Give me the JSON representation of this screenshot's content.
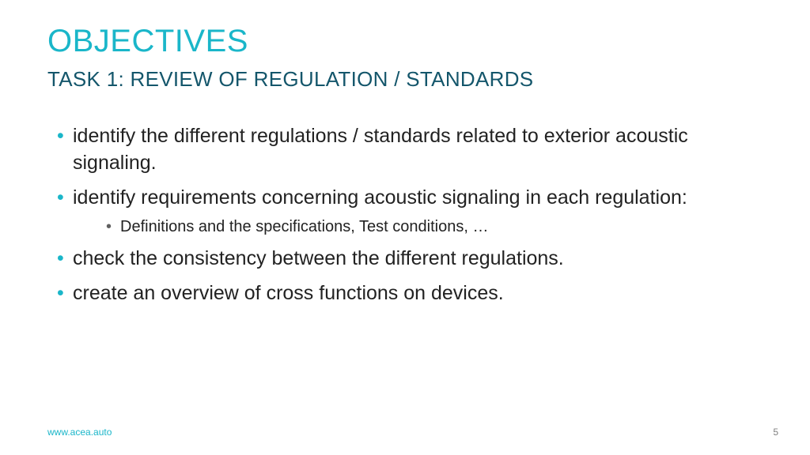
{
  "colors": {
    "accent": "#1ab6c9",
    "subtitle": "#14566b",
    "body_text": "#222222",
    "sub_bullet": "#606060",
    "page_number": "#808080",
    "background": "#ffffff"
  },
  "typography": {
    "title_fontsize": 40,
    "subtitle_fontsize": 26,
    "body_fontsize": 25,
    "sub_fontsize": 20,
    "footer_fontsize": 12,
    "font_family": "Arial"
  },
  "title": "OBJECTIVES",
  "subtitle": "TASK 1: REVIEW OF REGULATION / STANDARDS",
  "bullets": [
    {
      "text": "identify the different regulations / standards related to exterior acoustic signaling."
    },
    {
      "text": "identify requirements concerning acoustic signaling in each regulation:",
      "sub": [
        "Definitions and the specifications, Test conditions, …"
      ]
    },
    {
      "text": "check the consistency between the different regulations."
    },
    {
      "text": "create an overview of cross functions on devices."
    }
  ],
  "footer": {
    "url": "www.acea.auto",
    "page": "5"
  }
}
